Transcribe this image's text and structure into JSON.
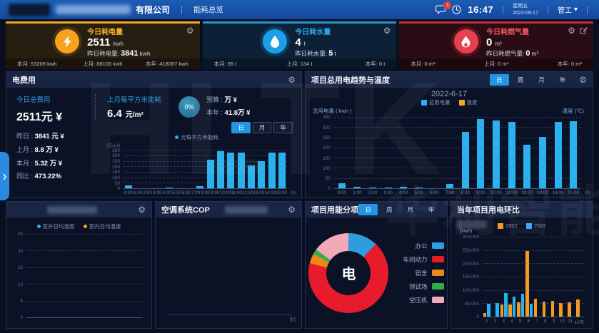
{
  "icons": {
    "gear": "⚙",
    "chevron_down": "▾",
    "chevron_right": "❯"
  },
  "watermark": {
    "line1": "HLTK",
    "line2": "华利智能"
  },
  "header": {
    "company_suffix": "有限公司",
    "nav_item": "能耗总览",
    "message_badge": "1",
    "time": "16:47",
    "weekday": "星期五",
    "date": "2022-06-17",
    "user": "管工"
  },
  "kpi_cards": [
    {
      "title": "今日耗电量",
      "value": "2511",
      "unit": "kwh",
      "yesterday_label": "昨日耗电量:",
      "yesterday_value": "3841",
      "yesterday_unit": "kwh",
      "footer": [
        "本月: 53209 kwh",
        "上月: 88106 kwh",
        "本年: 418087 kwh"
      ]
    },
    {
      "title": "今日耗水量",
      "value": "4",
      "unit": "t",
      "yesterday_label": "昨日耗水量:",
      "yesterday_value": "5",
      "yesterday_unit": "t",
      "footer": [
        "本月: 85 t",
        "上月: 134 t",
        "本年: 0 t"
      ]
    },
    {
      "title": "今日耗燃气量",
      "value": "0",
      "unit": "m³",
      "yesterday_label": "昨日耗燃气量:",
      "yesterday_value": "0",
      "yesterday_unit": "m³",
      "footer": [
        "本月: 0 m³",
        "上月: 0 m³",
        "本年: 0 m³"
      ]
    }
  ],
  "fee_panel": {
    "title": "电费用",
    "today_label": "今日总费用",
    "today_value": "2511元 ¥",
    "rows": [
      {
        "label": "昨日 :",
        "value": "3841 元 ¥"
      },
      {
        "label": "上月 :",
        "value": "8.8 万 ¥"
      },
      {
        "label": "本月 :",
        "value": "5.32 万 ¥"
      },
      {
        "label": "同比 :",
        "value": "473.22%"
      }
    ],
    "sqm_label": "上月每平方米能耗",
    "sqm_value": "6.4",
    "sqm_unit": "元/m²",
    "pct": "0%",
    "budget_label": "预算 :",
    "budget_value": "万 ¥",
    "year_label": "本年 :",
    "year_value": "41.8万 ¥",
    "tabs": {
      "items": [
        "日",
        "月",
        "年"
      ],
      "active": 0
    }
  },
  "trend_panel": {
    "title": "项目总用电趋势与温度",
    "tabs": {
      "items": [
        "日",
        "周",
        "月",
        "年"
      ],
      "active": 0
    },
    "chart_title": "2022-6-17",
    "ylabel_left": "总用电量 ( kwh )",
    "ylabel_right": "温度 (℃)"
  },
  "temp_panel": {
    "title": ""
  },
  "cop_panel": {
    "title": "空调系统COP"
  },
  "breakdown_panel": {
    "title": "项目用能分项",
    "tabs": {
      "items": [
        "日",
        "周",
        "月",
        "年"
      ],
      "active": 0
    },
    "center_label": "电"
  },
  "yearly_panel": {
    "title": "当年项目用电环比",
    "ylabel": "(kwh)"
  },
  "chart_data": [
    {
      "id": "fee",
      "type": "bar",
      "ylabel": "(元/㎡)",
      "xlabel": "(h)",
      "legend": [
        {
          "label": "元每平方米能耗",
          "color": "#29b2ef",
          "shape": "dot"
        }
      ],
      "categories": [
        "0:00",
        "1:00",
        "2:00",
        "3:00",
        "4:00",
        "5:00",
        "6:00",
        "7:00",
        "8:00",
        "9:00",
        "10:00",
        "11:00",
        "12:00",
        "13:00",
        "14:00",
        "15:00"
      ],
      "values": [
        30,
        8,
        8,
        8,
        10,
        8,
        4,
        28,
        270,
        345,
        335,
        330,
        215,
        255,
        330,
        335
      ],
      "ylim": [
        0,
        350
      ],
      "yticks": [
        0,
        50,
        100,
        150,
        200,
        250,
        300,
        350
      ],
      "bar_color": "#29b2ef",
      "grid": true
    },
    {
      "id": "trend",
      "type": "bar",
      "title": "2022-6-17",
      "xlabel": "(h)",
      "ylabel": "总用电量 ( kwh )",
      "ylabel_right": "温度 (℃)",
      "legend": [
        {
          "label": "总用电量",
          "color": "#29b2ef"
        },
        {
          "label": "温度",
          "color": "#f5a623"
        }
      ],
      "categories": [
        "0:00",
        "1:00",
        "2:00",
        "3:00",
        "4:00",
        "5:00",
        "6:00",
        "7:00",
        "8:00",
        "9:00",
        "10:00",
        "11:00",
        "12:00",
        "13:00",
        "14:00",
        "15:00"
      ],
      "values": [
        28,
        10,
        8,
        8,
        12,
        7,
        4,
        25,
        280,
        343,
        336,
        330,
        218,
        256,
        330,
        333
      ],
      "temperature_values": [],
      "ylim": [
        0,
        350
      ],
      "yticks": [
        0,
        50,
        100,
        150,
        200,
        250,
        300,
        350
      ],
      "bar_color": "#29b2ef",
      "grid": true
    },
    {
      "id": "temp",
      "type": "empty",
      "legend": [
        {
          "label": "室外日均温度",
          "color": "#29b2ef",
          "shape": "dot"
        },
        {
          "label": "室内日均温度",
          "color": "#f5a623",
          "shape": "dot"
        }
      ],
      "ylim": [
        0,
        25
      ],
      "yticks": [
        0,
        5,
        10,
        15,
        20,
        25
      ],
      "values": [],
      "grid": true
    },
    {
      "id": "cop",
      "type": "empty",
      "xlabel": "(h)",
      "ylim": [
        0,
        1
      ],
      "yticks": [],
      "values": []
    },
    {
      "id": "breakdown",
      "type": "pie",
      "center_label": "电",
      "unit": "%",
      "slices": [
        {
          "label": "办公",
          "value": 12,
          "color": "#2d9de0"
        },
        {
          "label": "车间动力",
          "value": 67,
          "color": "#e81b2d"
        },
        {
          "label": "宿舍",
          "value": 4,
          "color": "#f08519"
        },
        {
          "label": "测试场",
          "value": 2,
          "color": "#2fae4a"
        },
        {
          "label": "空压机",
          "value": 15,
          "color": "#f2a9b8"
        }
      ]
    },
    {
      "id": "yearly",
      "type": "grouped-bar",
      "ylabel": "(kwh)",
      "legend": [
        {
          "label": "2021",
          "color": "#f59a23"
        },
        {
          "label": "2022",
          "color": "#29b2ef"
        }
      ],
      "categories": [
        "1",
        "2",
        "3",
        "4",
        "5",
        "6",
        "7",
        "8",
        "9",
        "10",
        "11",
        "12月"
      ],
      "series": [
        {
          "name": "2021",
          "color": "#f59a23",
          "values": [
            15000,
            4000,
            48000,
            48000,
            55000,
            250000,
            70000,
            60000,
            61000,
            54000,
            55000,
            68000
          ]
        },
        {
          "name": "2022",
          "color": "#29b2ef",
          "values": [
            52000,
            54000,
            90000,
            77000,
            88000,
            52000,
            0,
            0,
            0,
            0,
            0,
            0
          ]
        }
      ],
      "ylim": [
        0,
        300000
      ],
      "yticks": [
        0,
        50000,
        100000,
        150000,
        200000,
        250000,
        300000
      ],
      "grid": true
    }
  ]
}
